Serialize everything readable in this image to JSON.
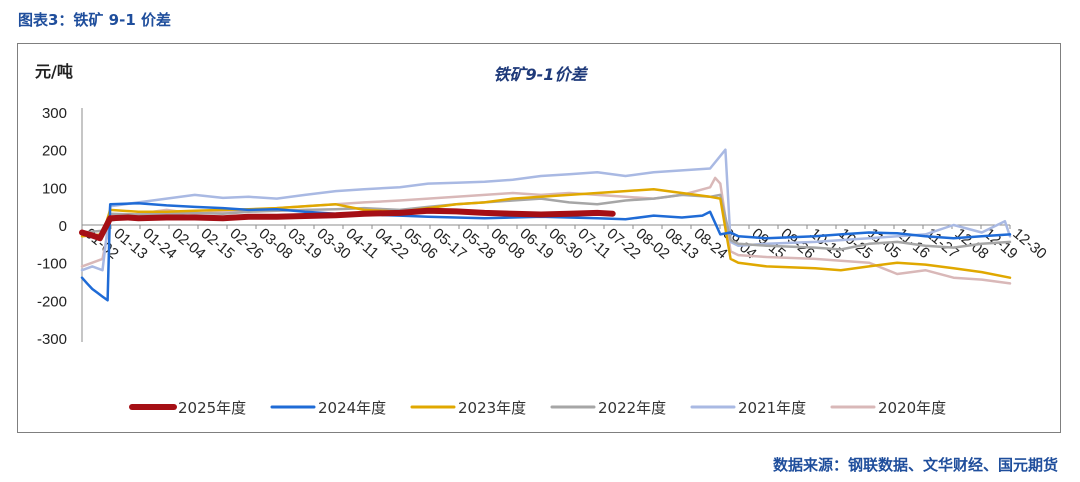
{
  "figure_caption": "图表3：铁矿 9-1 价差",
  "source_note": "数据来源：钢联数据、文华财经、国元期货",
  "chart_data": {
    "type": "line",
    "title": "铁矿9-1价差",
    "ylabel": "元/吨",
    "xlabel": "",
    "ylim": [
      -300,
      300
    ],
    "y_ticks": [
      "300",
      "200",
      "100",
      "0",
      "-100",
      "-200",
      "-300"
    ],
    "y_tick_values": [
      300,
      200,
      100,
      0,
      -100,
      -200,
      -300
    ],
    "x_tick_labels": [
      "01-02",
      "01-13",
      "01-24",
      "02-04",
      "02-15",
      "02-26",
      "03-08",
      "03-19",
      "03-30",
      "04-11",
      "04-22",
      "05-06",
      "05-17",
      "05-28",
      "06-08",
      "06-19",
      "06-30",
      "07-11",
      "07-22",
      "08-02",
      "08-13",
      "08-24",
      "09-04",
      "09-15",
      "09-26",
      "10-15",
      "10-25",
      "11-05",
      "11-16",
      "11-27",
      "12-08",
      "12-19",
      "12-30"
    ],
    "grid": false,
    "legend_position": "bottom",
    "series": [
      {
        "name": "2025年度",
        "color": "#a50f15",
        "width": 6,
        "x": [
          "01-02",
          "01-06",
          "01-09",
          "01-13",
          "01-20",
          "01-24",
          "02-04",
          "02-15",
          "02-26",
          "03-08",
          "03-19",
          "03-30",
          "04-11",
          "04-22",
          "05-06",
          "05-17",
          "05-28",
          "06-08",
          "06-19",
          "06-30",
          "07-11",
          "07-22",
          "07-28"
        ],
        "y": [
          -20,
          -28,
          -35,
          18,
          20,
          18,
          20,
          20,
          18,
          22,
          22,
          24,
          26,
          30,
          32,
          38,
          36,
          32,
          30,
          28,
          30,
          32,
          30
        ]
      },
      {
        "name": "2024年度",
        "color": "#1f6bd6",
        "width": 2.5,
        "x": [
          "01-02",
          "01-04",
          "01-06",
          "01-08",
          "01-10",
          "01-12",
          "01-13",
          "01-24",
          "02-04",
          "02-15",
          "02-26",
          "03-08",
          "03-19",
          "03-30",
          "04-11",
          "04-22",
          "05-06",
          "05-17",
          "05-28",
          "06-08",
          "06-19",
          "06-30",
          "07-11",
          "07-22",
          "08-02",
          "08-13",
          "08-24",
          "09-01",
          "09-04",
          "09-08",
          "09-12",
          "09-15",
          "09-26",
          "10-15",
          "10-25",
          "11-05",
          "11-16",
          "11-27",
          "12-08",
          "12-19",
          "12-30"
        ],
        "y": [
          -140,
          -155,
          -170,
          -180,
          -190,
          -200,
          55,
          58,
          52,
          48,
          45,
          40,
          42,
          35,
          30,
          28,
          25,
          22,
          20,
          18,
          20,
          22,
          20,
          18,
          15,
          25,
          20,
          25,
          35,
          -25,
          -20,
          -30,
          -35,
          -30,
          -25,
          -20,
          -22,
          -30,
          -35,
          -30,
          -25
        ]
      },
      {
        "name": "2023年度",
        "color": "#e0a800",
        "width": 2.5,
        "x": [
          "01-02",
          "01-10",
          "01-13",
          "01-24",
          "02-04",
          "02-15",
          "02-26",
          "03-08",
          "03-19",
          "03-30",
          "04-11",
          "04-22",
          "05-06",
          "05-17",
          "05-28",
          "06-08",
          "06-19",
          "06-30",
          "07-11",
          "07-22",
          "08-02",
          "08-13",
          "08-24",
          "09-04",
          "09-08",
          "09-12",
          "09-15",
          "09-26",
          "10-15",
          "10-25",
          "11-05",
          "11-16",
          "11-27",
          "12-08",
          "12-19",
          "12-30"
        ],
        "y": [
          -30,
          -25,
          40,
          35,
          35,
          38,
          40,
          42,
          45,
          50,
          55,
          40,
          35,
          45,
          55,
          60,
          70,
          75,
          80,
          85,
          90,
          95,
          85,
          75,
          70,
          -90,
          -100,
          -110,
          -115,
          -120,
          -110,
          -100,
          -105,
          -115,
          -125,
          -140
        ]
      },
      {
        "name": "2022年度",
        "color": "#a6a6a6",
        "width": 2.5,
        "x": [
          "01-02",
          "01-10",
          "01-13",
          "01-24",
          "02-04",
          "02-15",
          "02-26",
          "03-08",
          "03-19",
          "03-30",
          "04-11",
          "04-22",
          "05-06",
          "05-17",
          "05-28",
          "06-08",
          "06-19",
          "06-30",
          "07-11",
          "07-22",
          "08-02",
          "08-13",
          "08-24",
          "09-04",
          "09-08",
          "09-12",
          "09-15",
          "09-26",
          "10-15",
          "10-25",
          "11-05",
          "11-16",
          "11-27",
          "12-08",
          "12-19",
          "12-30"
        ],
        "y": [
          -20,
          -15,
          30,
          28,
          30,
          32,
          30,
          35,
          38,
          40,
          42,
          45,
          40,
          48,
          55,
          60,
          65,
          70,
          60,
          55,
          65,
          70,
          80,
          75,
          80,
          -40,
          -50,
          -55,
          -60,
          -65,
          -50,
          -45,
          -55,
          -60,
          -50,
          -45
        ]
      },
      {
        "name": "2021年度",
        "color": "#a9b9e3",
        "width": 2.5,
        "x": [
          "01-02",
          "01-06",
          "01-10",
          "01-13",
          "01-24",
          "02-04",
          "02-15",
          "02-26",
          "03-08",
          "03-19",
          "03-30",
          "04-11",
          "04-22",
          "05-06",
          "05-17",
          "05-28",
          "06-08",
          "06-19",
          "06-30",
          "07-11",
          "07-22",
          "08-02",
          "08-13",
          "08-24",
          "09-04",
          "09-10",
          "09-12",
          "09-15",
          "09-26",
          "10-15",
          "10-25",
          "11-05",
          "11-16",
          "11-27",
          "12-08",
          "12-19",
          "12-28",
          "12-30"
        ],
        "y": [
          -120,
          -110,
          -120,
          50,
          60,
          70,
          80,
          72,
          75,
          70,
          80,
          90,
          95,
          100,
          110,
          112,
          115,
          120,
          130,
          135,
          140,
          130,
          140,
          145,
          150,
          200,
          -45,
          -55,
          -50,
          -45,
          -40,
          -35,
          -30,
          -25,
          0,
          -20,
          10,
          -30
        ]
      },
      {
        "name": "2020年度",
        "color": "#d9b8b8",
        "width": 2.5,
        "x": [
          "01-02",
          "01-06",
          "01-10",
          "01-13",
          "01-24",
          "02-04",
          "02-15",
          "02-26",
          "03-08",
          "03-19",
          "03-30",
          "04-11",
          "04-22",
          "05-06",
          "05-17",
          "05-28",
          "06-08",
          "06-19",
          "06-30",
          "07-11",
          "07-22",
          "08-02",
          "08-13",
          "08-24",
          "09-04",
          "09-06",
          "09-08",
          "09-12",
          "09-15",
          "09-26",
          "10-15",
          "10-25",
          "11-05",
          "11-16",
          "11-27",
          "12-08",
          "12-19",
          "12-30"
        ],
        "y": [
          -110,
          -100,
          -90,
          10,
          30,
          40,
          30,
          35,
          40,
          45,
          50,
          55,
          60,
          65,
          70,
          75,
          80,
          85,
          80,
          85,
          80,
          75,
          70,
          80,
          100,
          125,
          110,
          -70,
          -80,
          -85,
          -90,
          -95,
          -100,
          -130,
          -120,
          -140,
          -145,
          -155
        ]
      }
    ]
  }
}
